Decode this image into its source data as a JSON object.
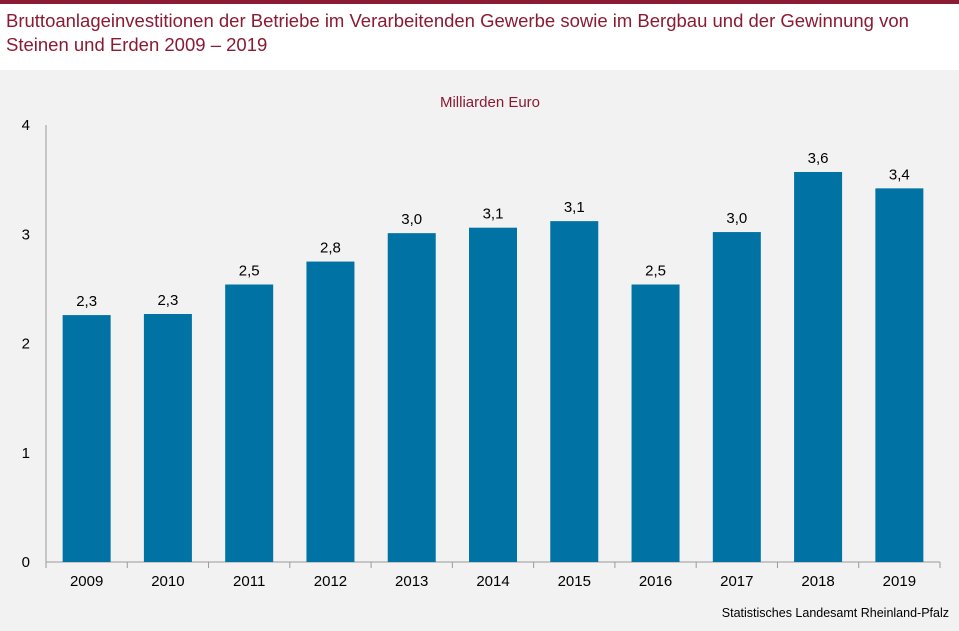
{
  "header": {
    "title": "Bruttoanlageinvestitionen der Betriebe im Verarbeitenden Gewerbe sowie im Bergbau und der Gewinnung von Steinen und Erden 2009 – 2019"
  },
  "footer": {
    "source": "Statistisches Landesamt Rheinland-Pfalz"
  },
  "colors": {
    "bar": "#0072a3",
    "accent": "#8b1a33",
    "panel": "#f2f2f2"
  },
  "chart_data": {
    "type": "bar",
    "title": "",
    "unit_label": "Milliarden Euro",
    "xlabel": "",
    "ylabel": "",
    "categories": [
      "2009",
      "2010",
      "2011",
      "2012",
      "2013",
      "2014",
      "2015",
      "2016",
      "2017",
      "2018",
      "2019"
    ],
    "values": [
      2.26,
      2.27,
      2.54,
      2.75,
      3.01,
      3.06,
      3.12,
      2.54,
      3.02,
      3.57,
      3.42
    ],
    "value_labels": [
      "2,3",
      "2,3",
      "2,5",
      "2,8",
      "3,0",
      "3,1",
      "3,1",
      "2,5",
      "3,0",
      "3,6",
      "3,4"
    ],
    "yticks": [
      0,
      1,
      2,
      3,
      4
    ],
    "ytick_labels": [
      "0",
      "1",
      "2",
      "3",
      "4"
    ],
    "ylim": [
      0,
      4
    ],
    "grid": false,
    "legend": "none"
  }
}
